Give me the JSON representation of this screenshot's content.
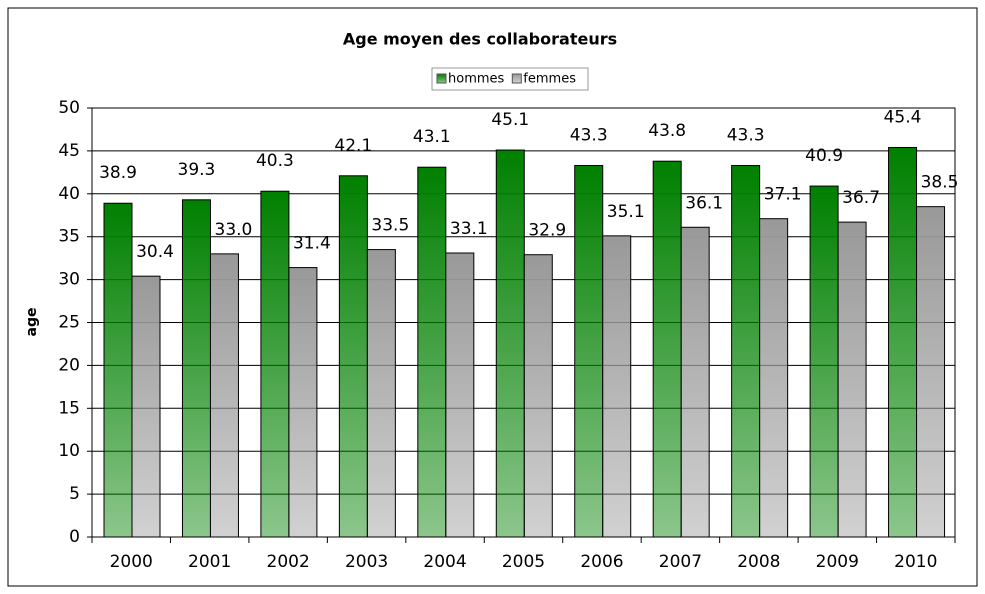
{
  "chart_data": {
    "type": "bar",
    "title": "Age moyen des collaborateurs",
    "y_label": "age",
    "categories": [
      "2000",
      "2001",
      "2002",
      "2003",
      "2004",
      "2005",
      "2006",
      "2007",
      "2008",
      "2009",
      "2010"
    ],
    "series": [
      {
        "name": "hommes",
        "color": "#008000",
        "values": [
          38.9,
          39.3,
          40.3,
          42.1,
          43.1,
          45.1,
          43.3,
          43.8,
          43.3,
          40.9,
          45.4
        ],
        "value_labels": [
          "38.9",
          "39.3",
          "40.3",
          "42.1",
          "43.1",
          "45.1",
          "43.3",
          "43.8",
          "43.3",
          "40.9",
          "45.4"
        ]
      },
      {
        "name": "femmes",
        "color": "#999999",
        "values": [
          30.4,
          33.0,
          31.4,
          33.5,
          33.1,
          32.9,
          35.1,
          36.1,
          37.1,
          36.7,
          38.5
        ],
        "value_labels": [
          "30.4",
          "33.0",
          "31.4",
          "33.5",
          "33.1",
          "32.9",
          "35.1",
          "36.1",
          "37.1",
          "36.7",
          "38.5"
        ]
      }
    ],
    "ylim": [
      0,
      50
    ],
    "yticks": [
      0,
      5,
      10,
      15,
      20,
      25,
      30,
      35,
      40,
      45,
      50
    ],
    "grid": true,
    "legend": "top"
  }
}
